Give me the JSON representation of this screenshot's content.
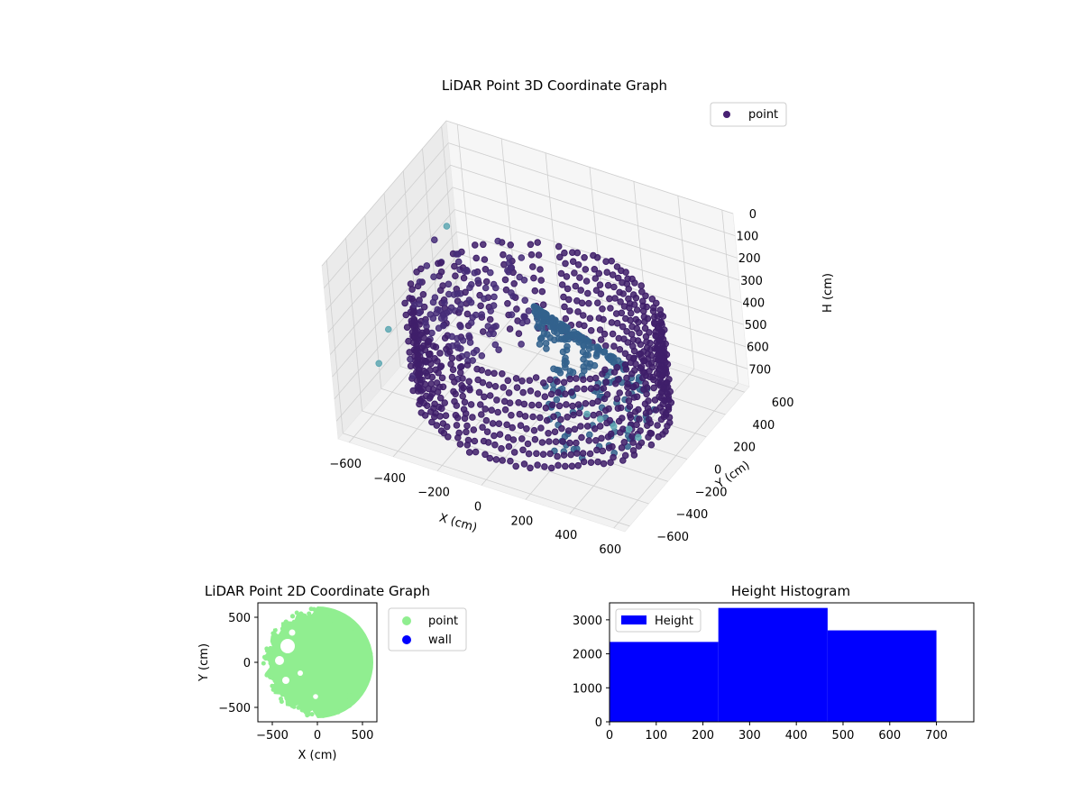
{
  "chart_data": [
    {
      "type": "scatter",
      "projection": "3d",
      "title": "LiDAR Point 3D Coordinate Graph",
      "xlabel": "X (cm)",
      "ylabel": "Y (cm)",
      "zlabel": "H (cm)",
      "xticks": [
        "−600",
        "−400",
        "−200",
        "0",
        "200",
        "400",
        "600"
      ],
      "yticks": [
        "−600",
        "−400",
        "−200",
        "0",
        "200",
        "400",
        "600"
      ],
      "zticks": [
        "0",
        "100",
        "200",
        "300",
        "400",
        "500",
        "600",
        "700"
      ],
      "xlim": [
        -650,
        650
      ],
      "ylim": [
        -650,
        650
      ],
      "zlim": [
        780,
        0
      ],
      "z_axis_inverted": true,
      "grid": true,
      "legend": {
        "placement": "upper right",
        "entries": [
          "point"
        ]
      },
      "colormap": "viridis",
      "series": [
        {
          "name": "point",
          "color": "#482173",
          "description_values": {
            "ring_radius_approx": 520,
            "height_range": [
              250,
              750
            ],
            "inner_cone_color": "#31688e",
            "outlier_color": "#5fa8b3"
          }
        }
      ]
    },
    {
      "type": "scatter",
      "title": "LiDAR Point 2D Coordinate Graph",
      "xlabel": "X (cm)",
      "ylabel": "Y (cm)",
      "xticks": [
        "−500",
        "0",
        "500"
      ],
      "yticks": [
        "−500",
        "0",
        "500"
      ],
      "xlim": [
        -660,
        660
      ],
      "ylim": [
        -660,
        660
      ],
      "legend": {
        "placement": "outside right",
        "entries": [
          "point",
          "wall"
        ]
      },
      "series": [
        {
          "name": "point",
          "color": "#90ee90"
        },
        {
          "name": "wall",
          "color": "#0000ff"
        }
      ]
    },
    {
      "type": "bar",
      "histogram": true,
      "title": "Height Histogram",
      "xlabel": "",
      "ylabel": "",
      "xticks": [
        "0",
        "100",
        "200",
        "300",
        "400",
        "500",
        "600",
        "700"
      ],
      "yticks": [
        "0",
        "1000",
        "2000",
        "3000"
      ],
      "xlim": [
        0,
        780
      ],
      "ylim": [
        0,
        3500
      ],
      "legend": {
        "placement": "upper left",
        "entries": [
          "Height"
        ]
      },
      "bins": [
        {
          "from": 0,
          "to": 233,
          "count": 2350
        },
        {
          "from": 233,
          "to": 467,
          "count": 3350
        },
        {
          "from": 467,
          "to": 700,
          "count": 2690
        }
      ],
      "series": [
        {
          "name": "Height",
          "color": "#0000ff"
        }
      ]
    }
  ]
}
